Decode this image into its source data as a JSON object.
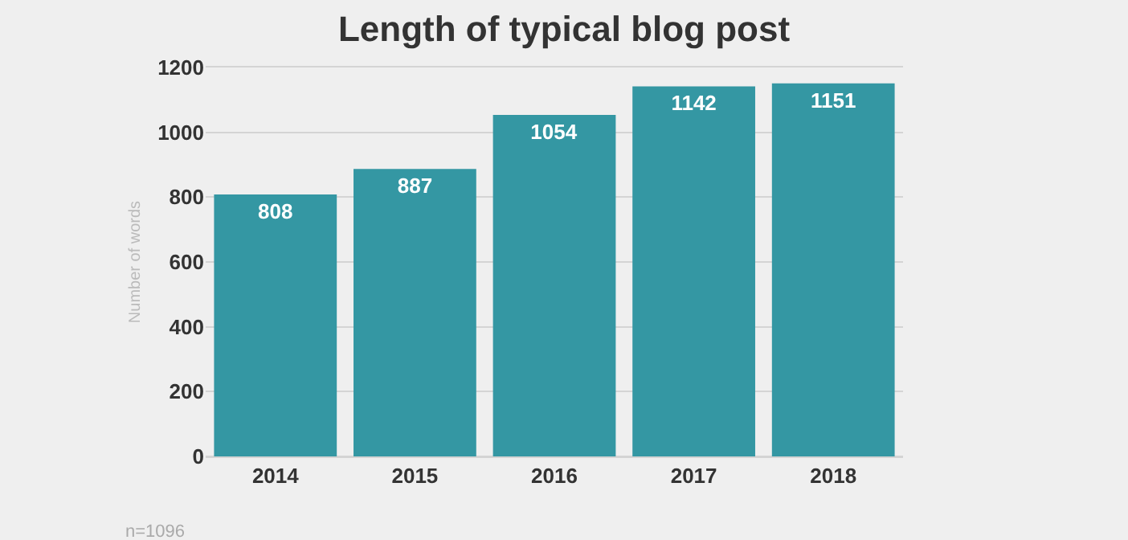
{
  "chart_data": {
    "type": "bar",
    "title": "Length of typical blog post",
    "ylabel": "Number of words",
    "categories": [
      "2014",
      "2015",
      "2016",
      "2017",
      "2018"
    ],
    "values": [
      808,
      887,
      1054,
      1142,
      1151
    ],
    "color": "#3497a3",
    "data_labels": true,
    "ylim": [
      0,
      1200
    ],
    "yticks": [
      0,
      200,
      400,
      600,
      800,
      1000,
      1200
    ],
    "grid": "y",
    "annotations": [
      "n=1096"
    ]
  }
}
